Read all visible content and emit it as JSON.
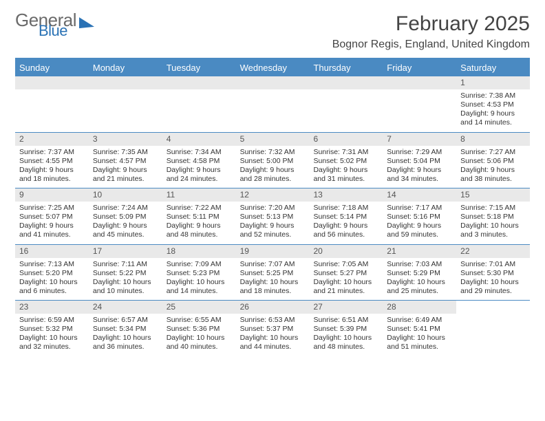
{
  "logo": {
    "line1": "General",
    "line2": "Blue"
  },
  "header": {
    "month_title": "February 2025",
    "location": "Bognor Regis, England, United Kingdom"
  },
  "colors": {
    "accent": "#4a8ac2",
    "accent_dark": "#2a72b5",
    "row_alt": "#e9e9e9",
    "text": "#333333"
  },
  "weekdays": [
    "Sunday",
    "Monday",
    "Tuesday",
    "Wednesday",
    "Thursday",
    "Friday",
    "Saturday"
  ],
  "weeks": [
    [
      null,
      null,
      null,
      null,
      null,
      null,
      {
        "n": "1",
        "sr": "Sunrise: 7:38 AM",
        "ss": "Sunset: 4:53 PM",
        "dl": "Daylight: 9 hours and 14 minutes."
      }
    ],
    [
      {
        "n": "2",
        "sr": "Sunrise: 7:37 AM",
        "ss": "Sunset: 4:55 PM",
        "dl": "Daylight: 9 hours and 18 minutes."
      },
      {
        "n": "3",
        "sr": "Sunrise: 7:35 AM",
        "ss": "Sunset: 4:57 PM",
        "dl": "Daylight: 9 hours and 21 minutes."
      },
      {
        "n": "4",
        "sr": "Sunrise: 7:34 AM",
        "ss": "Sunset: 4:58 PM",
        "dl": "Daylight: 9 hours and 24 minutes."
      },
      {
        "n": "5",
        "sr": "Sunrise: 7:32 AM",
        "ss": "Sunset: 5:00 PM",
        "dl": "Daylight: 9 hours and 28 minutes."
      },
      {
        "n": "6",
        "sr": "Sunrise: 7:31 AM",
        "ss": "Sunset: 5:02 PM",
        "dl": "Daylight: 9 hours and 31 minutes."
      },
      {
        "n": "7",
        "sr": "Sunrise: 7:29 AM",
        "ss": "Sunset: 5:04 PM",
        "dl": "Daylight: 9 hours and 34 minutes."
      },
      {
        "n": "8",
        "sr": "Sunrise: 7:27 AM",
        "ss": "Sunset: 5:06 PM",
        "dl": "Daylight: 9 hours and 38 minutes."
      }
    ],
    [
      {
        "n": "9",
        "sr": "Sunrise: 7:25 AM",
        "ss": "Sunset: 5:07 PM",
        "dl": "Daylight: 9 hours and 41 minutes."
      },
      {
        "n": "10",
        "sr": "Sunrise: 7:24 AM",
        "ss": "Sunset: 5:09 PM",
        "dl": "Daylight: 9 hours and 45 minutes."
      },
      {
        "n": "11",
        "sr": "Sunrise: 7:22 AM",
        "ss": "Sunset: 5:11 PM",
        "dl": "Daylight: 9 hours and 48 minutes."
      },
      {
        "n": "12",
        "sr": "Sunrise: 7:20 AM",
        "ss": "Sunset: 5:13 PM",
        "dl": "Daylight: 9 hours and 52 minutes."
      },
      {
        "n": "13",
        "sr": "Sunrise: 7:18 AM",
        "ss": "Sunset: 5:14 PM",
        "dl": "Daylight: 9 hours and 56 minutes."
      },
      {
        "n": "14",
        "sr": "Sunrise: 7:17 AM",
        "ss": "Sunset: 5:16 PM",
        "dl": "Daylight: 9 hours and 59 minutes."
      },
      {
        "n": "15",
        "sr": "Sunrise: 7:15 AM",
        "ss": "Sunset: 5:18 PM",
        "dl": "Daylight: 10 hours and 3 minutes."
      }
    ],
    [
      {
        "n": "16",
        "sr": "Sunrise: 7:13 AM",
        "ss": "Sunset: 5:20 PM",
        "dl": "Daylight: 10 hours and 6 minutes."
      },
      {
        "n": "17",
        "sr": "Sunrise: 7:11 AM",
        "ss": "Sunset: 5:22 PM",
        "dl": "Daylight: 10 hours and 10 minutes."
      },
      {
        "n": "18",
        "sr": "Sunrise: 7:09 AM",
        "ss": "Sunset: 5:23 PM",
        "dl": "Daylight: 10 hours and 14 minutes."
      },
      {
        "n": "19",
        "sr": "Sunrise: 7:07 AM",
        "ss": "Sunset: 5:25 PM",
        "dl": "Daylight: 10 hours and 18 minutes."
      },
      {
        "n": "20",
        "sr": "Sunrise: 7:05 AM",
        "ss": "Sunset: 5:27 PM",
        "dl": "Daylight: 10 hours and 21 minutes."
      },
      {
        "n": "21",
        "sr": "Sunrise: 7:03 AM",
        "ss": "Sunset: 5:29 PM",
        "dl": "Daylight: 10 hours and 25 minutes."
      },
      {
        "n": "22",
        "sr": "Sunrise: 7:01 AM",
        "ss": "Sunset: 5:30 PM",
        "dl": "Daylight: 10 hours and 29 minutes."
      }
    ],
    [
      {
        "n": "23",
        "sr": "Sunrise: 6:59 AM",
        "ss": "Sunset: 5:32 PM",
        "dl": "Daylight: 10 hours and 32 minutes."
      },
      {
        "n": "24",
        "sr": "Sunrise: 6:57 AM",
        "ss": "Sunset: 5:34 PM",
        "dl": "Daylight: 10 hours and 36 minutes."
      },
      {
        "n": "25",
        "sr": "Sunrise: 6:55 AM",
        "ss": "Sunset: 5:36 PM",
        "dl": "Daylight: 10 hours and 40 minutes."
      },
      {
        "n": "26",
        "sr": "Sunrise: 6:53 AM",
        "ss": "Sunset: 5:37 PM",
        "dl": "Daylight: 10 hours and 44 minutes."
      },
      {
        "n": "27",
        "sr": "Sunrise: 6:51 AM",
        "ss": "Sunset: 5:39 PM",
        "dl": "Daylight: 10 hours and 48 minutes."
      },
      {
        "n": "28",
        "sr": "Sunrise: 6:49 AM",
        "ss": "Sunset: 5:41 PM",
        "dl": "Daylight: 10 hours and 51 minutes."
      },
      null
    ]
  ]
}
